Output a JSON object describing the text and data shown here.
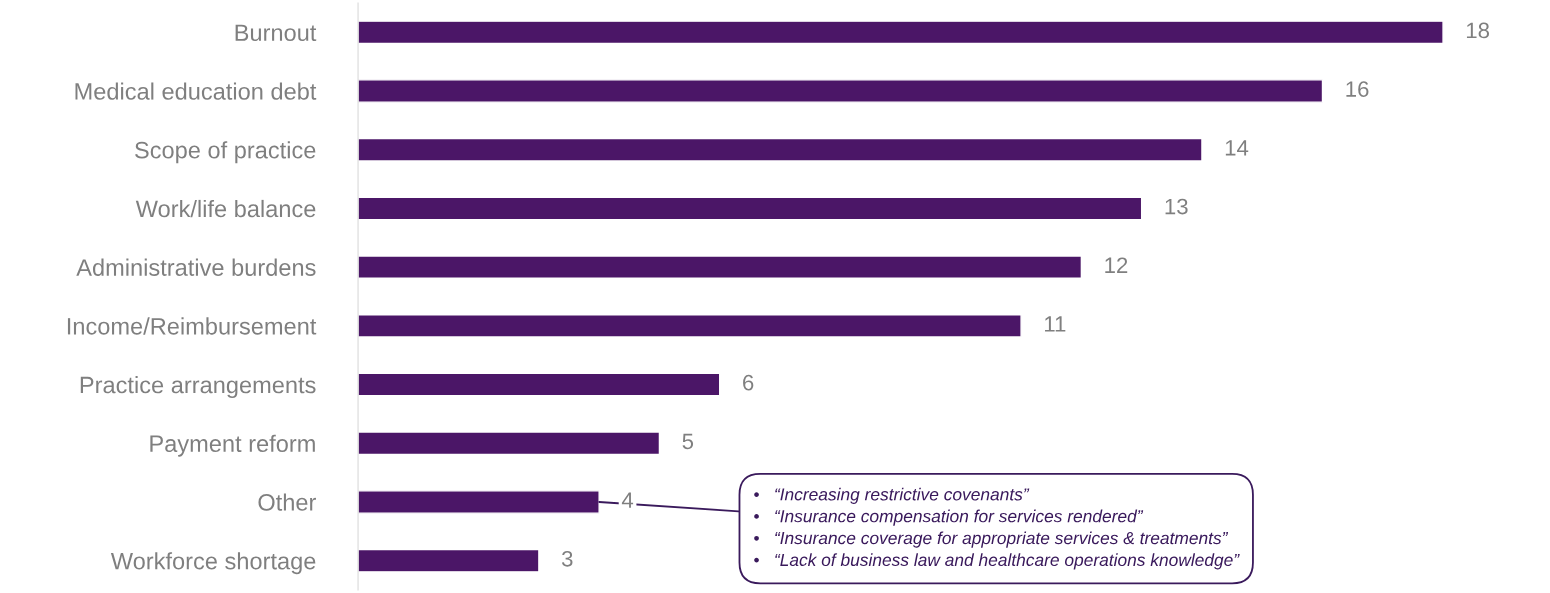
{
  "chart_data": {
    "type": "bar",
    "orientation": "horizontal",
    "categories": [
      "Burnout",
      "Medical education debt",
      "Scope of practice",
      "Work/life balance",
      "Administrative burdens",
      "Income/Reimbursement",
      "Practice arrangements",
      "Payment reform",
      "Other",
      "Workforce shortage"
    ],
    "values": [
      18,
      16,
      14,
      13,
      12,
      11,
      6,
      5,
      4,
      3
    ],
    "color": "#4b1667",
    "data_labels": true,
    "grid": false,
    "legend": false,
    "tick_labels": "y",
    "annotations": [
      {
        "text": "•   “Increasing restrictive covenants”\n•   “Insurance compensation for services rendered”\n•   “Insurance coverage for appropriate services & treatments”\n•   “Lack of business law and healthcare operations knowledge”",
        "x": 4,
        "y": "Other"
      }
    ]
  }
}
